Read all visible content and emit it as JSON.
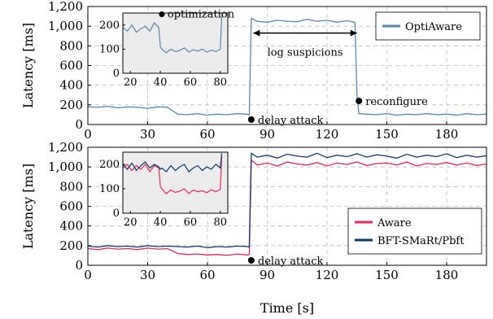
{
  "xlabel": "Time [s]",
  "colors": {
    "optiaware": "#5a87ad",
    "aware": "#e8265a",
    "bftsmart": "#0e3a6b"
  },
  "chart_data": [
    {
      "type": "line",
      "ylabel": "Latency [ms]",
      "xlim": [
        0,
        200
      ],
      "ylim": [
        0,
        1200
      ],
      "xticks": [
        "0",
        "30",
        "60",
        "90",
        "120",
        "150",
        "180"
      ],
      "yticks": [
        "0",
        "200",
        "400",
        "600",
        "800",
        "1,000",
        "1,200"
      ],
      "grid": true,
      "legend_position": "top-right",
      "series": [
        {
          "name": "OptiAware",
          "x": [
            0,
            5,
            10,
            15,
            20,
            25,
            30,
            35,
            40,
            45,
            50,
            55,
            60,
            65,
            70,
            75,
            80,
            81,
            82,
            85,
            90,
            95,
            100,
            105,
            110,
            115,
            120,
            125,
            130,
            134,
            135,
            136,
            140,
            145,
            150,
            155,
            160,
            165,
            170,
            175,
            180,
            185,
            190,
            195,
            200
          ],
          "y": [
            180,
            175,
            185,
            170,
            180,
            175,
            165,
            180,
            175,
            105,
            100,
            110,
            95,
            105,
            100,
            110,
            105,
            100,
            1080,
            1050,
            1040,
            1060,
            1050,
            1045,
            1070,
            1050,
            1060,
            1040,
            1055,
            1040,
            300,
            110,
            105,
            100,
            110,
            95,
            105,
            100,
            110,
            100,
            105,
            95,
            110,
            100,
            105
          ]
        }
      ],
      "annotations": [
        {
          "x": 82,
          "y": 50,
          "text": "delay attack"
        },
        {
          "x": 136,
          "y": 240,
          "text": "reconfigure"
        },
        {
          "x_from": 83,
          "x_to": 135,
          "y": 930,
          "text": "log suspicions"
        }
      ],
      "inset": {
        "xlim": [
          15,
          85
        ],
        "ylim": [
          0,
          250
        ],
        "xticks": [
          "20",
          "40",
          "60",
          "80"
        ],
        "yticks": [
          "0",
          "100",
          "200"
        ],
        "series": [
          {
            "name": "OptiAware",
            "x": [
              15,
              18,
              21,
              24,
              27,
              30,
              33,
              36,
              39,
              40,
              41,
              44,
              47,
              50,
              53,
              56,
              59,
              62,
              65,
              68,
              71,
              74,
              77,
              80,
              81
            ],
            "y": [
              190,
              175,
              200,
              170,
              185,
              195,
              175,
              210,
              190,
              110,
              100,
              85,
              100,
              90,
              95,
              105,
              88,
              98,
              92,
              100,
              87,
              96,
              90,
              100,
              240
            ]
          }
        ],
        "annotations": [
          {
            "x": 41,
            "y": 245,
            "text": "optimization"
          }
        ]
      }
    },
    {
      "type": "line",
      "ylabel": "Latency [ms]",
      "xlim": [
        0,
        200
      ],
      "ylim": [
        0,
        1200
      ],
      "xticks": [
        "0",
        "30",
        "60",
        "90",
        "120",
        "150",
        "180"
      ],
      "yticks": [
        "0",
        "200",
        "400",
        "600",
        "800",
        "1,000",
        "1,200"
      ],
      "grid": true,
      "legend_position": "bottom-right",
      "series": [
        {
          "name": "Aware",
          "x": [
            0,
            5,
            10,
            15,
            20,
            25,
            30,
            35,
            40,
            45,
            50,
            55,
            60,
            65,
            70,
            75,
            80,
            81,
            82,
            85,
            90,
            95,
            100,
            105,
            110,
            115,
            120,
            125,
            130,
            135,
            140,
            145,
            150,
            155,
            160,
            165,
            170,
            175,
            180,
            185,
            190,
            195,
            200
          ],
          "y": [
            170,
            160,
            175,
            165,
            170,
            160,
            175,
            165,
            170,
            120,
            110,
            115,
            105,
            110,
            100,
            115,
            105,
            110,
            1070,
            1020,
            1040,
            1010,
            1050,
            1030,
            1020,
            1045,
            1010,
            1040,
            1025,
            1050,
            1015,
            1035,
            1040,
            1020,
            1050,
            1010,
            1035,
            1025,
            1045,
            1020,
            1040,
            1015,
            1030
          ]
        },
        {
          "name": "BFT-SMaRt/Pbft",
          "x": [
            0,
            5,
            10,
            15,
            20,
            25,
            30,
            35,
            40,
            45,
            50,
            55,
            60,
            65,
            70,
            75,
            80,
            81,
            82,
            85,
            90,
            95,
            100,
            105,
            110,
            115,
            120,
            125,
            130,
            135,
            140,
            145,
            150,
            155,
            160,
            165,
            170,
            175,
            180,
            185,
            190,
            195,
            200
          ],
          "y": [
            195,
            185,
            200,
            190,
            195,
            185,
            200,
            190,
            195,
            190,
            185,
            195,
            180,
            190,
            185,
            195,
            190,
            185,
            1140,
            1100,
            1120,
            1090,
            1130,
            1110,
            1100,
            1140,
            1095,
            1120,
            1105,
            1135,
            1100,
            1125,
            1110,
            1090,
            1130,
            1100,
            1120,
            1105,
            1135,
            1095,
            1120,
            1100,
            1115
          ]
        }
      ],
      "annotations": [
        {
          "x": 82,
          "y": 50,
          "text": "delay attack"
        }
      ],
      "inset": {
        "xlim": [
          15,
          85
        ],
        "ylim": [
          0,
          250
        ],
        "xticks": [
          "20",
          "40",
          "60",
          "80"
        ],
        "yticks": [
          "0",
          "100",
          "200"
        ],
        "series": [
          {
            "name": "Aware",
            "x": [
              15,
              18,
              21,
              24,
              27,
              30,
              33,
              36,
              39,
              40,
              41,
              44,
              47,
              50,
              53,
              56,
              59,
              62,
              65,
              68,
              71,
              74,
              77,
              80,
              81
            ],
            "y": [
              185,
              200,
              175,
              195,
              180,
              200,
              170,
              195,
              185,
              110,
              100,
              80,
              95,
              85,
              90,
              100,
              80,
              95,
              88,
              92,
              84,
              96,
              88,
              98,
              235
            ]
          },
          {
            "name": "BFT-SMaRt/Pbft",
            "x": [
              15,
              18,
              21,
              24,
              27,
              30,
              33,
              36,
              39,
              40,
              41,
              44,
              47,
              50,
              53,
              56,
              59,
              62,
              65,
              68,
              71,
              74,
              77,
              80,
              81
            ],
            "y": [
              200,
              180,
              205,
              175,
              195,
              210,
              185,
              200,
              190,
              180,
              185,
              170,
              195,
              175,
              190,
              200,
              170,
              185,
              195,
              175,
              190,
              180,
              200,
              185,
              245
            ]
          }
        ]
      }
    }
  ]
}
